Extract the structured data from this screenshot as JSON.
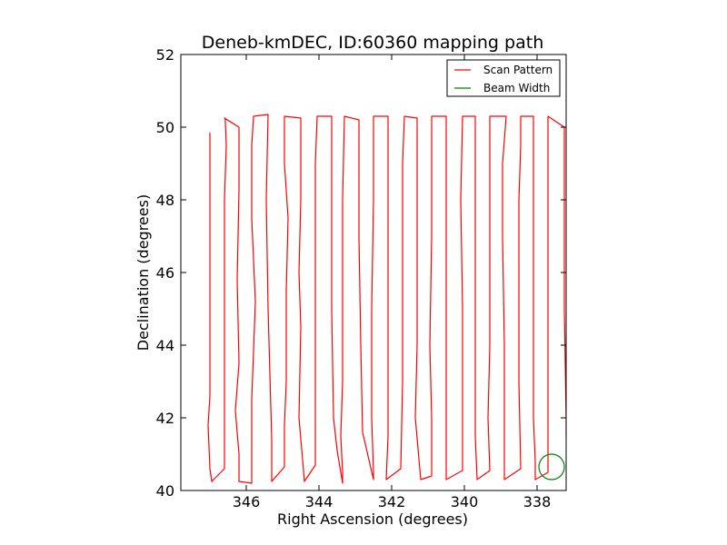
{
  "chart_data": {
    "type": "line",
    "title": "Deneb-kmDEC, ID:60360 mapping path",
    "xlabel": "Right Ascension (degrees)",
    "ylabel": "Declination (degrees)",
    "xlim": [
      347.8,
      337.2
    ],
    "ylim": [
      40,
      52
    ],
    "x_inverted": true,
    "x_ticks": [
      346,
      344,
      342,
      340,
      338
    ],
    "y_ticks": [
      40,
      42,
      44,
      46,
      48,
      50,
      52
    ],
    "x_tick_labels": [
      "346",
      "344",
      "342",
      "340",
      "338"
    ],
    "y_tick_labels": [
      "40",
      "42",
      "44",
      "46",
      "48",
      "50",
      "52"
    ],
    "grid": false,
    "legend_position": "top-right",
    "legend": [
      {
        "label": "Scan Pattern",
        "color": "#ff0000"
      },
      {
        "label": "Beam Width",
        "color": "#008000"
      }
    ],
    "series": [
      {
        "name": "Scan Pattern",
        "color": "#ff0000",
        "x": [
          347.0,
          347.0,
          347.0,
          347.0,
          347.05,
          347.0,
          346.95,
          346.6,
          346.6,
          346.6,
          346.6,
          346.6,
          346.55,
          346.58,
          346.6,
          346.2,
          346.2,
          346.25,
          346.2,
          346.3,
          346.2,
          346.2,
          345.85,
          345.85,
          345.75,
          345.85,
          345.85,
          345.8,
          345.4,
          345.45,
          345.4,
          345.3,
          345.3,
          344.95,
          344.95,
          344.9,
          344.9,
          344.85,
          344.95,
          344.95,
          344.5,
          344.5,
          344.55,
          344.5,
          344.55,
          344.4,
          344.1,
          344.1,
          344.1,
          344.1,
          344.1,
          344.1,
          344.05,
          343.65,
          343.65,
          343.65,
          343.6,
          343.5,
          343.35,
          343.35,
          343.4,
          343.35,
          343.35,
          343.35,
          343.3,
          342.9,
          342.9,
          342.85,
          342.8,
          342.5,
          342.5,
          342.55,
          342.55,
          342.5,
          342.5,
          342.1,
          342.1,
          342.1,
          342.1,
          342.15,
          341.75,
          341.7,
          341.7,
          341.7,
          341.7,
          341.65,
          341.3,
          341.3,
          341.3,
          341.3,
          341.35,
          341.2,
          340.9,
          340.9,
          340.95,
          340.9,
          340.9,
          340.5,
          340.5,
          340.5,
          340.5,
          340.5,
          340.5,
          340.5,
          340.05,
          340.05,
          340.05,
          340.1,
          340.05,
          339.7,
          339.7,
          339.7,
          339.7,
          339.7,
          339.65,
          339.3,
          339.35,
          339.3,
          339.3,
          339.3,
          339.3,
          338.85,
          338.95,
          338.95,
          338.9,
          338.9,
          338.9,
          338.45,
          338.5,
          338.5,
          338.5,
          338.45,
          338.45,
          338.1,
          338.1,
          338.1,
          338.1,
          338.05,
          338.05,
          337.7,
          337.7,
          337.7,
          337.7,
          337.7,
          337.7,
          337.25,
          337.25,
          337.2,
          337.2,
          337.15
        ],
        "y": [
          49.85,
          46.0,
          44.0,
          42.6,
          41.8,
          40.6,
          40.25,
          40.6,
          41.4,
          43.5,
          46.0,
          48.0,
          49.5,
          50.25,
          50.25,
          50.0,
          48.3,
          45.8,
          43.5,
          42.2,
          41.0,
          40.25,
          40.2,
          42.5,
          45.2,
          47.5,
          49.5,
          50.3,
          50.35,
          48.0,
          45.0,
          41.4,
          40.25,
          40.65,
          41.8,
          43.0,
          45.5,
          47.5,
          49.0,
          50.3,
          50.25,
          48.0,
          46.0,
          44.5,
          42.0,
          40.25,
          40.7,
          41.6,
          43.0,
          45.5,
          47.5,
          49.0,
          50.3,
          50.3,
          48.0,
          45.0,
          42.0,
          41.1,
          40.2,
          40.5,
          41.5,
          43.0,
          45.0,
          48.0,
          50.3,
          50.2,
          47.0,
          44.0,
          41.6,
          40.3,
          40.5,
          42.0,
          45.0,
          48.0,
          50.3,
          50.3,
          47.0,
          43.5,
          41.5,
          40.3,
          40.6,
          43.0,
          45.0,
          47.0,
          49.0,
          50.3,
          50.25,
          48.0,
          46.0,
          44.0,
          42.0,
          40.3,
          40.4,
          42.0,
          44.0,
          47.0,
          50.3,
          50.3,
          48.0,
          46.0,
          44.0,
          42.0,
          40.8,
          40.3,
          40.55,
          43.0,
          45.0,
          48.0,
          50.3,
          50.3,
          48.0,
          46.0,
          44.0,
          41.5,
          40.3,
          40.55,
          42.0,
          44.0,
          47.0,
          49.0,
          50.3,
          50.3,
          49.0,
          47.0,
          44.0,
          42.0,
          40.3,
          40.6,
          43.0,
          46.0,
          48.0,
          49.5,
          50.3,
          50.3,
          48.0,
          45.0,
          42.0,
          40.8,
          40.3,
          40.5,
          42.0,
          44.0,
          47.0,
          49.5,
          50.3,
          50.0,
          45.0,
          42.0,
          41.5,
          40.3
        ]
      },
      {
        "name": "Beam Width",
        "color": "#008000",
        "shape": "circle",
        "center": [
          337.6,
          40.65
        ],
        "radius": 0.35
      }
    ]
  }
}
